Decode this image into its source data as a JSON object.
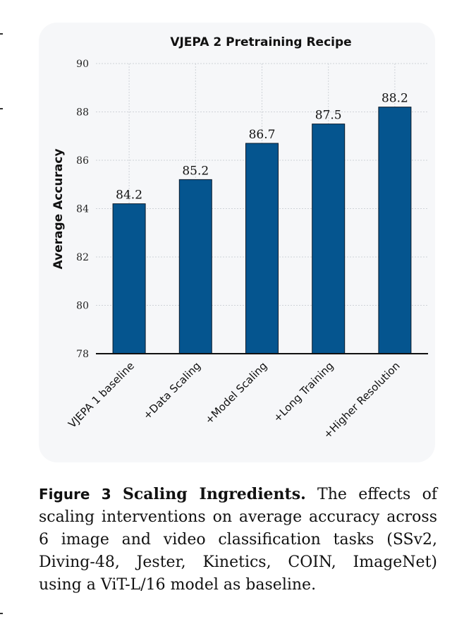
{
  "chart_data": {
    "type": "bar",
    "title": "VJEPA 2 Pretraining Recipe",
    "xlabel": "",
    "ylabel": "Average Accuracy",
    "categories": [
      "VJEPA 1 baseline",
      "+Data Scaling",
      "+Model Scaling",
      "+Long Training",
      "+Higher Resolution"
    ],
    "values": [
      84.2,
      85.2,
      86.7,
      87.5,
      88.2
    ],
    "data_labels": [
      "84.2",
      "85.2",
      "86.7",
      "87.5",
      "88.2"
    ],
    "ylim": [
      78,
      90
    ],
    "yticks": [
      "78",
      "80",
      "82",
      "84",
      "86",
      "88",
      "90"
    ],
    "bar_color": "#05558f",
    "grid": true,
    "legend": "none"
  },
  "caption": {
    "label": "Figure 3",
    "title": "Scaling Ingredients.",
    "text": "The effects of scaling interventions on average accuracy across 6 image and video classification tasks (SSv2, Diving-48, Jester, Kinetics, COIN, ImageNet) using a ViT-L/16 model as baseline."
  }
}
